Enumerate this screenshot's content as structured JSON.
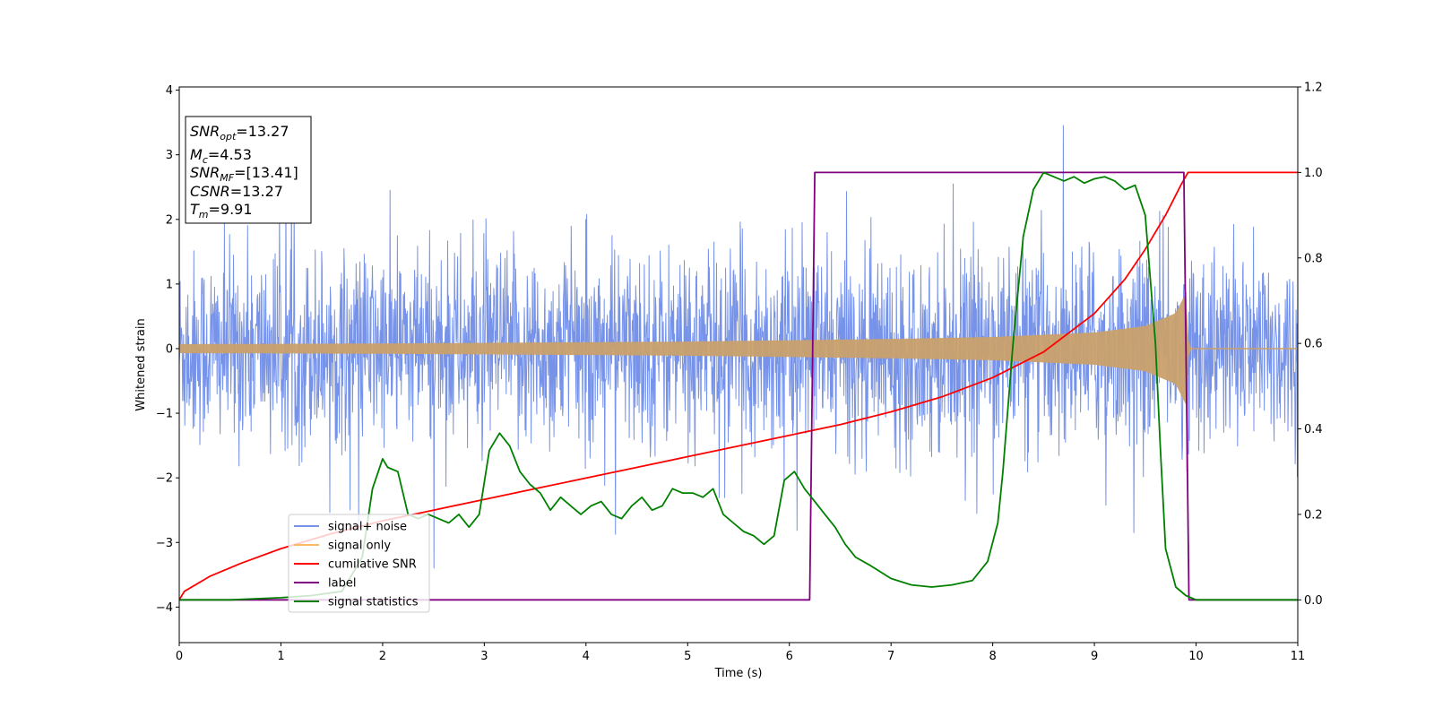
{
  "chart_data": {
    "type": "line",
    "title": "",
    "xlabel": "Time (s)",
    "ylabel": "Whitened strain",
    "xlim": [
      0,
      11
    ],
    "ylim": [
      -4.55,
      4.05
    ],
    "y2lim": [
      -0.1,
      1.2
    ],
    "x_ticks": [
      0,
      1,
      2,
      3,
      4,
      5,
      6,
      7,
      8,
      9,
      10,
      11
    ],
    "y_ticks": [
      -4,
      -3,
      -2,
      -1,
      0,
      1,
      2,
      3,
      4
    ],
    "y_tick_labels": [
      "−4",
      "−3",
      "−2",
      "−1",
      "0",
      "1",
      "2",
      "3",
      "4"
    ],
    "y2_ticks": [
      0.0,
      0.2,
      0.4,
      0.6,
      0.8,
      1.0,
      1.2
    ],
    "y2_tick_labels": [
      "0.0",
      "0.2",
      "0.4",
      "0.6",
      "0.8",
      "1.0",
      "1.2"
    ],
    "grid": false,
    "legend_position": "lower-left",
    "info_box": {
      "snr_opt": {
        "sym": "SNR",
        "sub": "opt",
        "rest": "=13.27"
      },
      "mc": {
        "sym": "M",
        "sub": "c",
        "rest": "=4.53"
      },
      "snr_mf": {
        "sym": "SNR",
        "sub": "MF",
        "rest": "=[13.41]"
      },
      "csnr": {
        "sym": "CSNR",
        "sub": "",
        "rest": "=13.27"
      },
      "tm": {
        "sym": "T",
        "sub": "m",
        "rest": "=9.91"
      }
    },
    "series": [
      {
        "name": "signal+ noise",
        "axis": "left",
        "color": "#4169e1",
        "description": "whitened strain noise, roughly ±1.5 band with spikes up to about ±3.5",
        "envelope": 1.5
      },
      {
        "name": "signal only",
        "axis": "left",
        "color": "#fdb863",
        "x": [
          0,
          1,
          2,
          3,
          4,
          5,
          6,
          7,
          8,
          9,
          9.5,
          9.8,
          9.91,
          9.93,
          11
        ],
        "amplitude": [
          0.07,
          0.075,
          0.08,
          0.09,
          0.1,
          0.11,
          0.13,
          0.15,
          0.18,
          0.25,
          0.35,
          0.55,
          0.9,
          0.0,
          0.0
        ]
      },
      {
        "name": "cumilative SNR",
        "axis": "right",
        "color": "#ff0000",
        "x": [
          0.0,
          0.05,
          0.3,
          0.6,
          1.0,
          1.5,
          2.0,
          2.5,
          3.0,
          3.5,
          4.0,
          4.5,
          5.0,
          5.5,
          6.0,
          6.5,
          7.0,
          7.5,
          8.0,
          8.5,
          9.0,
          9.3,
          9.5,
          9.7,
          9.85,
          9.92,
          11.0
        ],
        "y": [
          0.0,
          0.02,
          0.055,
          0.085,
          0.12,
          0.155,
          0.185,
          0.21,
          0.235,
          0.26,
          0.285,
          0.31,
          0.335,
          0.36,
          0.385,
          0.41,
          0.44,
          0.475,
          0.52,
          0.58,
          0.67,
          0.75,
          0.82,
          0.9,
          0.97,
          1.0,
          1.0
        ]
      },
      {
        "name": "label",
        "axis": "right",
        "color": "#800080",
        "x": [
          0,
          6.2,
          6.25,
          9.88,
          9.93,
          11
        ],
        "y": [
          0,
          0,
          1,
          1,
          0,
          0
        ]
      },
      {
        "name": "signal statistics",
        "axis": "right",
        "color": "#008000",
        "x": [
          0.0,
          0.5,
          1.0,
          1.3,
          1.6,
          1.8,
          1.9,
          2.0,
          2.05,
          2.15,
          2.25,
          2.35,
          2.45,
          2.55,
          2.65,
          2.75,
          2.85,
          2.95,
          3.05,
          3.15,
          3.25,
          3.35,
          3.45,
          3.55,
          3.65,
          3.75,
          3.85,
          3.95,
          4.05,
          4.15,
          4.25,
          4.35,
          4.45,
          4.55,
          4.65,
          4.75,
          4.85,
          4.95,
          5.05,
          5.15,
          5.25,
          5.35,
          5.45,
          5.55,
          5.65,
          5.75,
          5.85,
          5.95,
          6.05,
          6.15,
          6.25,
          6.35,
          6.45,
          6.55,
          6.65,
          6.8,
          7.0,
          7.2,
          7.4,
          7.6,
          7.8,
          7.95,
          8.05,
          8.1,
          8.2,
          8.3,
          8.4,
          8.5,
          8.6,
          8.7,
          8.8,
          8.9,
          9.0,
          9.1,
          9.2,
          9.3,
          9.4,
          9.5,
          9.6,
          9.65,
          9.7,
          9.8,
          9.9,
          10.0,
          11.0
        ],
        "y": [
          0.0,
          0.0,
          0.005,
          0.01,
          0.02,
          0.1,
          0.26,
          0.33,
          0.31,
          0.3,
          0.2,
          0.19,
          0.2,
          0.19,
          0.18,
          0.2,
          0.17,
          0.2,
          0.35,
          0.39,
          0.36,
          0.3,
          0.27,
          0.25,
          0.21,
          0.24,
          0.22,
          0.2,
          0.22,
          0.23,
          0.2,
          0.19,
          0.22,
          0.24,
          0.21,
          0.22,
          0.26,
          0.25,
          0.25,
          0.24,
          0.26,
          0.2,
          0.18,
          0.16,
          0.15,
          0.13,
          0.15,
          0.28,
          0.3,
          0.26,
          0.23,
          0.2,
          0.17,
          0.13,
          0.1,
          0.08,
          0.05,
          0.035,
          0.03,
          0.035,
          0.045,
          0.09,
          0.18,
          0.3,
          0.6,
          0.85,
          0.96,
          1.0,
          0.99,
          0.98,
          0.99,
          0.975,
          0.985,
          0.99,
          0.98,
          0.96,
          0.97,
          0.9,
          0.6,
          0.35,
          0.12,
          0.03,
          0.01,
          0.0,
          0.0
        ]
      }
    ]
  }
}
